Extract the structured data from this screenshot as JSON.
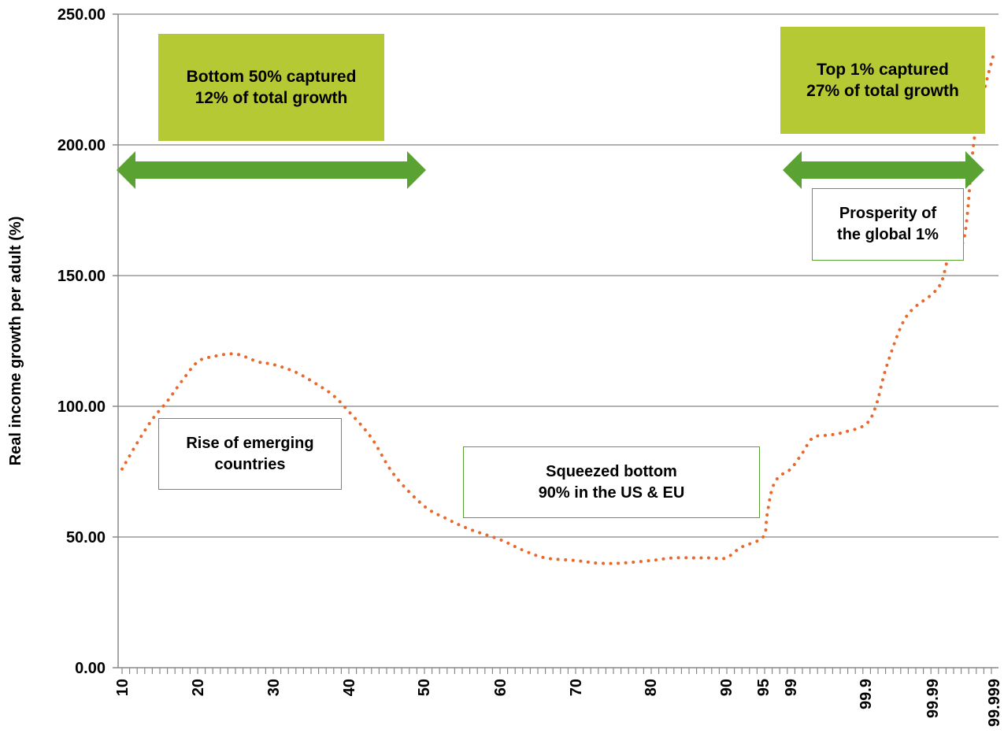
{
  "chart_data": {
    "type": "line",
    "ylabel": "Real income growth per adult (%)",
    "xlabel": "",
    "ylim": [
      0,
      250
    ],
    "yticks": [
      "0.00",
      "50.00",
      "100.00",
      "150.00",
      "200.00",
      "250.00"
    ],
    "grid": true,
    "x_tick_labels": [
      "10",
      "20",
      "30",
      "40",
      "50",
      "60",
      "70",
      "80",
      "90",
      "95",
      "99",
      "99.9",
      "99.99",
      "99.999"
    ],
    "series": [
      {
        "line_style": "dotted",
        "color": "#e8692e",
        "x": [
          "10",
          "12",
          "14",
          "16",
          "18",
          "20",
          "22",
          "25",
          "28",
          "30",
          "33",
          "36",
          "38",
          "40",
          "43",
          "46",
          "50",
          "53",
          "56",
          "60",
          "63",
          "66",
          "70",
          "73",
          "76",
          "80",
          "83",
          "86",
          "88",
          "90",
          "92",
          "95",
          "96",
          "97",
          "98",
          "99",
          "99.3",
          "99.5",
          "99.7",
          "99.8",
          "99.9",
          "99.93",
          "99.95",
          "99.97",
          "99.98",
          "99.99",
          "99.993",
          "99.995",
          "99.997",
          "99.998",
          "99.999"
        ],
        "values": [
          76,
          86,
          95,
          102,
          110,
          117,
          119,
          120,
          117,
          116,
          113,
          108,
          104,
          98,
          88,
          74,
          62,
          57,
          53,
          49,
          45,
          42,
          41,
          40,
          40,
          41,
          42,
          42,
          42,
          42,
          46,
          50,
          58,
          68,
          73,
          76,
          82,
          88,
          89,
          90,
          93,
          100,
          114,
          130,
          137,
          143,
          148,
          160,
          165,
          205,
          235
        ]
      }
    ]
  },
  "colors": {
    "accent_fill": "#b5c934",
    "arrow": "#5aa232",
    "line": "#e8692e",
    "grid": "#999999"
  },
  "annotations": {
    "bottom50": "Bottom 50% captured\n12% of total growth",
    "top1": "Top 1% captured\n27% of total growth",
    "prosperity": "Prosperity of\nthe global 1%",
    "emerging": "Rise of emerging\ncountries",
    "squeezed": "Squeezed bottom\n90% in the US & EU"
  }
}
